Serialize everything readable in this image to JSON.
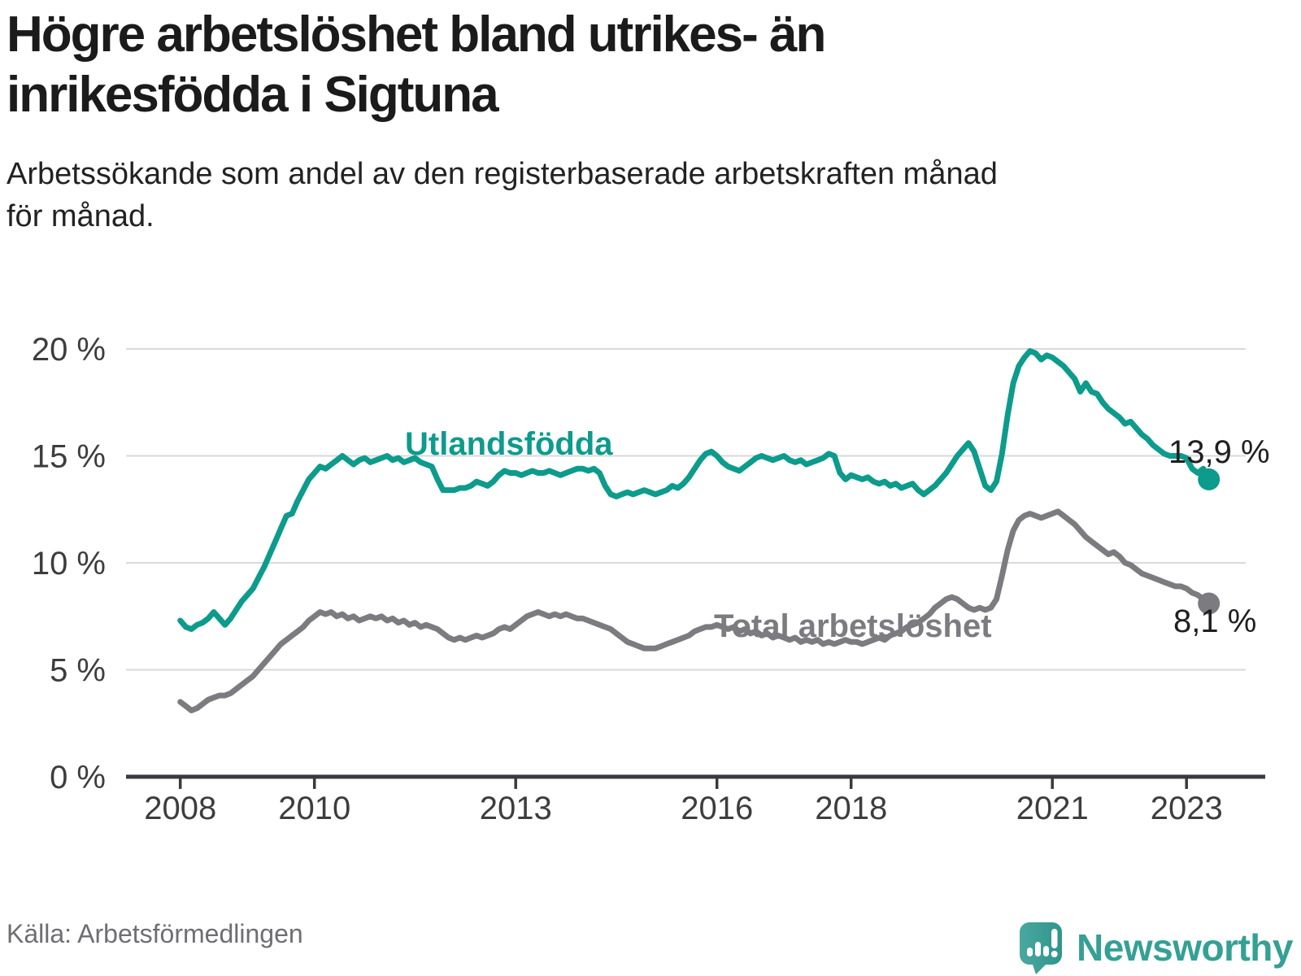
{
  "header": {
    "title_line1": "Högre arbetslöshet bland utrikes- än",
    "title_line2": "inrikesfödda i Sigtuna",
    "subtitle_line1": "Arbetssökande som andel av den registerbaserade arbetskraften månad",
    "subtitle_line2": "för månad."
  },
  "footer": {
    "source": "Källa: Arbetsförmedlingen",
    "brand": "Newsworthy"
  },
  "colors": {
    "accent_teal": "#0d9b8c",
    "line_gray": "#7b7b80",
    "grid": "#d9d9d9",
    "axis": "#3a3a3e",
    "axis_text": "#3d3d3d",
    "value_text": "#1f1f1f",
    "brand_teal": "#35a094",
    "logo_teal_light": "#4aa8a0",
    "logo_teal_dark": "#2f958c"
  },
  "chart_data": {
    "type": "line",
    "unit": "%",
    "x_start": "2008-01",
    "x_end": "2023-05",
    "x_frequency": "monthly",
    "ylim": [
      0,
      20
    ],
    "grid": true,
    "y_ticks": [
      {
        "label": "0 %",
        "value": 0
      },
      {
        "label": "5 %",
        "value": 5
      },
      {
        "label": "10 %",
        "value": 10
      },
      {
        "label": "15 %",
        "value": 15
      },
      {
        "label": "20 %",
        "value": 20
      }
    ],
    "x_ticks": [
      {
        "label": "2008",
        "year": 2008
      },
      {
        "label": "2010",
        "year": 2010
      },
      {
        "label": "2013",
        "year": 2013
      },
      {
        "label": "2016",
        "year": 2016
      },
      {
        "label": "2018",
        "year": 2018
      },
      {
        "label": "2021",
        "year": 2021
      },
      {
        "label": "2023",
        "year": 2023
      }
    ],
    "series": [
      {
        "name": "Utlandsfödda",
        "color": "#0d9b8c",
        "end_label": "13,9 %",
        "end_value": 13.9,
        "values": [
          7.3,
          7.0,
          6.9,
          7.1,
          7.2,
          7.4,
          7.7,
          7.4,
          7.1,
          7.4,
          7.8,
          8.2,
          8.5,
          8.8,
          9.3,
          9.8,
          10.4,
          11.0,
          11.6,
          12.2,
          12.3,
          12.9,
          13.4,
          13.9,
          14.2,
          14.5,
          14.4,
          14.6,
          14.8,
          15.0,
          14.8,
          14.6,
          14.8,
          14.9,
          14.7,
          14.8,
          14.9,
          15.0,
          14.8,
          14.9,
          14.7,
          14.8,
          14.9,
          14.7,
          14.6,
          14.5,
          13.9,
          13.4,
          13.4,
          13.4,
          13.5,
          13.5,
          13.6,
          13.8,
          13.7,
          13.6,
          13.8,
          14.1,
          14.3,
          14.2,
          14.2,
          14.1,
          14.2,
          14.3,
          14.2,
          14.2,
          14.3,
          14.2,
          14.1,
          14.2,
          14.3,
          14.4,
          14.4,
          14.3,
          14.4,
          14.2,
          13.6,
          13.2,
          13.1,
          13.2,
          13.3,
          13.2,
          13.3,
          13.4,
          13.3,
          13.2,
          13.3,
          13.4,
          13.6,
          13.5,
          13.7,
          14.0,
          14.4,
          14.8,
          15.1,
          15.2,
          15.0,
          14.7,
          14.5,
          14.4,
          14.3,
          14.5,
          14.7,
          14.9,
          15.0,
          14.9,
          14.8,
          14.9,
          15.0,
          14.8,
          14.7,
          14.8,
          14.6,
          14.7,
          14.8,
          14.9,
          15.1,
          15.0,
          14.2,
          13.9,
          14.1,
          14.0,
          13.9,
          14.0,
          13.8,
          13.7,
          13.8,
          13.6,
          13.7,
          13.5,
          13.6,
          13.7,
          13.4,
          13.2,
          13.4,
          13.6,
          13.9,
          14.2,
          14.6,
          15.0,
          15.3,
          15.6,
          15.2,
          14.4,
          13.6,
          13.4,
          13.8,
          15.1,
          16.9,
          18.4,
          19.2,
          19.6,
          19.9,
          19.8,
          19.5,
          19.7,
          19.6,
          19.4,
          19.2,
          18.9,
          18.6,
          18.0,
          18.4,
          18.0,
          17.9,
          17.5,
          17.2,
          17.0,
          16.8,
          16.5,
          16.6,
          16.3,
          16.0,
          15.8,
          15.5,
          15.3,
          15.1,
          15.0,
          15.0,
          15.0,
          14.9,
          14.4,
          14.2,
          14.4,
          13.9
        ]
      },
      {
        "name": "Total arbetslöshet",
        "color": "#7b7b80",
        "end_label": "8,1 %",
        "end_value": 8.1,
        "values": [
          3.5,
          3.3,
          3.1,
          3.2,
          3.4,
          3.6,
          3.7,
          3.8,
          3.8,
          3.9,
          4.1,
          4.3,
          4.5,
          4.7,
          5.0,
          5.3,
          5.6,
          5.9,
          6.2,
          6.4,
          6.6,
          6.8,
          7.0,
          7.3,
          7.5,
          7.7,
          7.6,
          7.7,
          7.5,
          7.6,
          7.4,
          7.5,
          7.3,
          7.4,
          7.5,
          7.4,
          7.5,
          7.3,
          7.4,
          7.2,
          7.3,
          7.1,
          7.2,
          7.0,
          7.1,
          7.0,
          6.9,
          6.7,
          6.5,
          6.4,
          6.5,
          6.4,
          6.5,
          6.6,
          6.5,
          6.6,
          6.7,
          6.9,
          7.0,
          6.9,
          7.1,
          7.3,
          7.5,
          7.6,
          7.7,
          7.6,
          7.5,
          7.6,
          7.5,
          7.6,
          7.5,
          7.4,
          7.4,
          7.3,
          7.2,
          7.1,
          7.0,
          6.9,
          6.7,
          6.5,
          6.3,
          6.2,
          6.1,
          6.0,
          6.0,
          6.0,
          6.1,
          6.2,
          6.3,
          6.4,
          6.5,
          6.6,
          6.8,
          6.9,
          7.0,
          7.0,
          7.1,
          7.0,
          6.9,
          7.0,
          6.8,
          6.9,
          6.7,
          6.8,
          6.6,
          6.7,
          6.5,
          6.6,
          6.5,
          6.4,
          6.5,
          6.3,
          6.4,
          6.3,
          6.4,
          6.2,
          6.3,
          6.2,
          6.3,
          6.4,
          6.3,
          6.3,
          6.2,
          6.3,
          6.4,
          6.5,
          6.4,
          6.6,
          6.7,
          6.8,
          7.0,
          7.1,
          7.2,
          7.4,
          7.6,
          7.9,
          8.1,
          8.3,
          8.4,
          8.3,
          8.1,
          7.9,
          7.8,
          7.9,
          7.8,
          7.9,
          8.3,
          9.4,
          10.6,
          11.5,
          12.0,
          12.2,
          12.3,
          12.2,
          12.1,
          12.2,
          12.3,
          12.4,
          12.2,
          12.0,
          11.8,
          11.5,
          11.2,
          11.0,
          10.8,
          10.6,
          10.4,
          10.5,
          10.3,
          10.0,
          9.9,
          9.7,
          9.5,
          9.4,
          9.3,
          9.2,
          9.1,
          9.0,
          8.9,
          8.9,
          8.8,
          8.6,
          8.5,
          8.3,
          8.1
        ]
      }
    ]
  }
}
